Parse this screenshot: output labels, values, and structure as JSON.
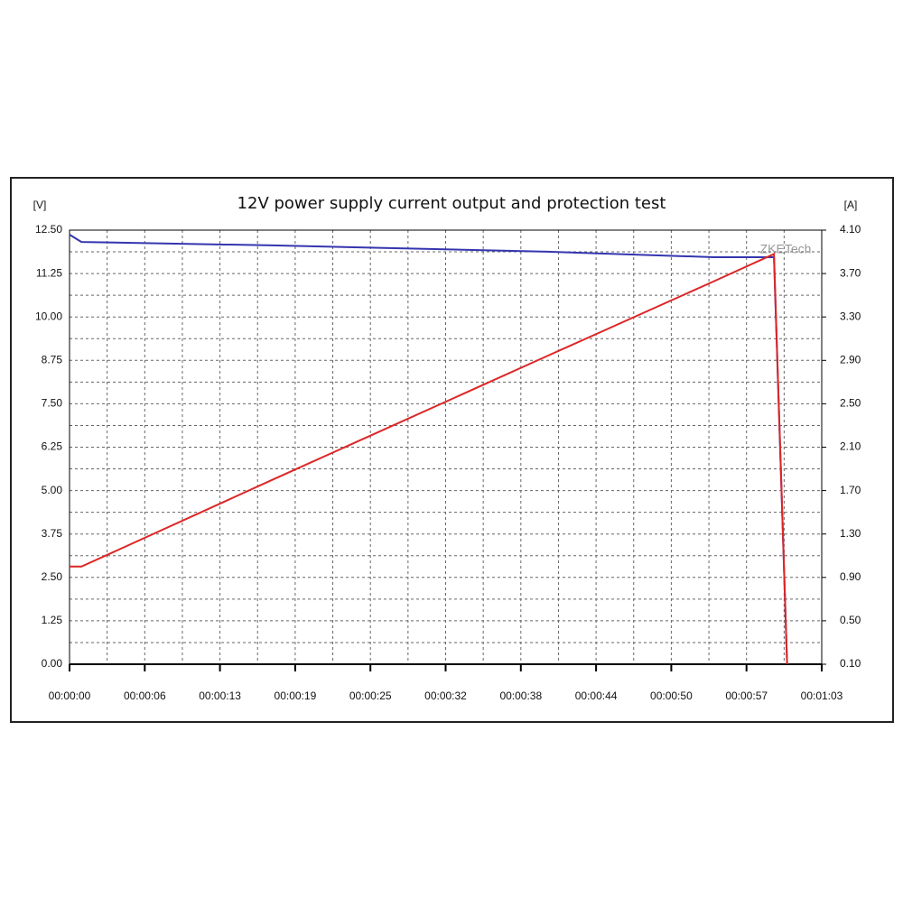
{
  "chart_data": {
    "type": "line",
    "title": "12V power supply current output and protection test",
    "y_axis_label": "[V]",
    "y2_axis_label": "[A]",
    "watermark": "ZKETech",
    "x": [
      0,
      1,
      17,
      40,
      54,
      59,
      60.1
    ],
    "series": [
      {
        "color": "#3535b0",
        "values": [
          12.37,
          12.16,
          12.06,
          11.88,
          11.72,
          11.72,
          0
        ]
      },
      {
        "color": "#dd2626",
        "axis": "y2",
        "values": [
          1.0,
          1.0,
          1.8,
          2.94,
          3.63,
          3.88,
          0.1
        ]
      }
    ],
    "xlim": [
      0,
      63
    ],
    "xticks": [
      {
        "value": 0,
        "label": "00:00:00"
      },
      {
        "value": 6.3,
        "label": "00:00:06"
      },
      {
        "value": 12.6,
        "label": "00:00:13"
      },
      {
        "value": 18.9,
        "label": "00:00:19"
      },
      {
        "value": 25.2,
        "label": "00:00:25"
      },
      {
        "value": 31.5,
        "label": "00:00:32"
      },
      {
        "value": 37.8,
        "label": "00:00:38"
      },
      {
        "value": 44.1,
        "label": "00:00:44"
      },
      {
        "value": 50.4,
        "label": "00:00:50"
      },
      {
        "value": 56.7,
        "label": "00:00:57"
      },
      {
        "value": 63,
        "label": "00:01:03"
      }
    ],
    "ylim": [
      0,
      12.5
    ],
    "yticks": [
      {
        "value": 0,
        "label": "0.00"
      },
      1.25,
      {
        "value": 2.5,
        "label": "2.50"
      },
      3.75,
      {
        "value": 5,
        "label": "5.00"
      },
      6.25,
      {
        "value": 7.5,
        "label": "7.50"
      },
      8.75,
      {
        "value": 10,
        "label": "10.00"
      },
      11.25,
      {
        "value": 12.5,
        "label": "12.50"
      }
    ],
    "y2lim": [
      0.1,
      4.1
    ],
    "y2ticks": [
      {
        "value": 0.1,
        "label": "0.10"
      },
      {
        "value": 0.5,
        "label": "0.50"
      },
      {
        "value": 0.9,
        "label": "0.90"
      },
      {
        "value": 1.3,
        "label": "1.30"
      },
      {
        "value": 1.7,
        "label": "1.70"
      },
      {
        "value": 2.1,
        "label": "2.10"
      },
      {
        "value": 2.5,
        "label": "2.50"
      },
      {
        "value": 2.9,
        "label": "2.90"
      },
      {
        "value": 3.3,
        "label": "3.30"
      },
      {
        "value": 3.7,
        "label": "3.70"
      },
      {
        "value": 4.1,
        "label": "4.10"
      }
    ],
    "grid": true
  }
}
